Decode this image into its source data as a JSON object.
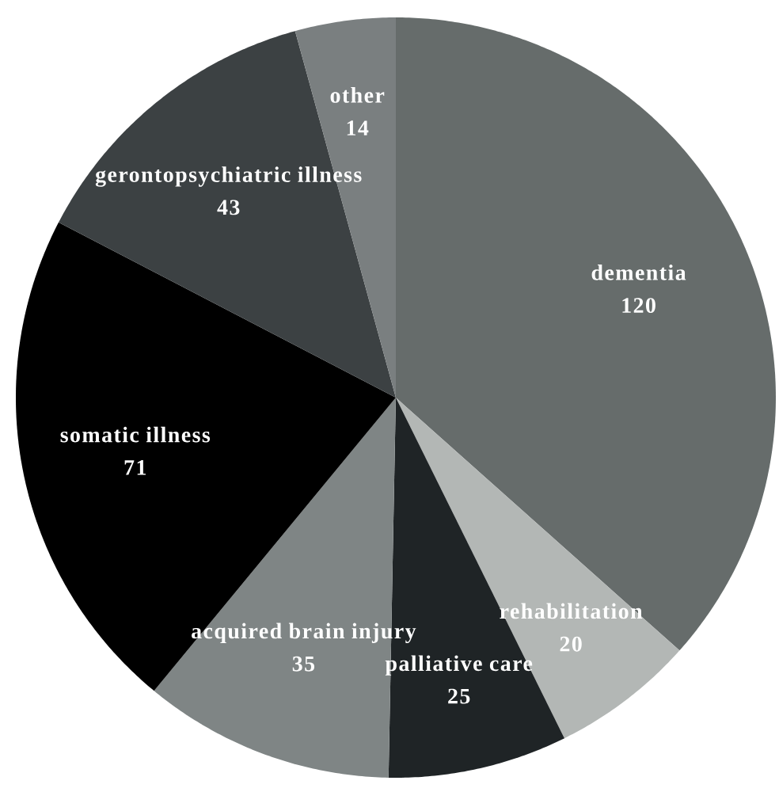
{
  "chart_data": {
    "type": "pie",
    "categories": [
      "dementia",
      "rehabilitation",
      "palliative care",
      "acquired brain injury",
      "somatic illness",
      "gerontopsychiatric illness",
      "other"
    ],
    "values": [
      120,
      20,
      25,
      35,
      71,
      43,
      14
    ],
    "colors": [
      "#666c6b",
      "#b3b7b5",
      "#1f2426",
      "#7f8585",
      "#000000",
      "#3c4143",
      "#7a7f80"
    ],
    "data_labels": true
  }
}
